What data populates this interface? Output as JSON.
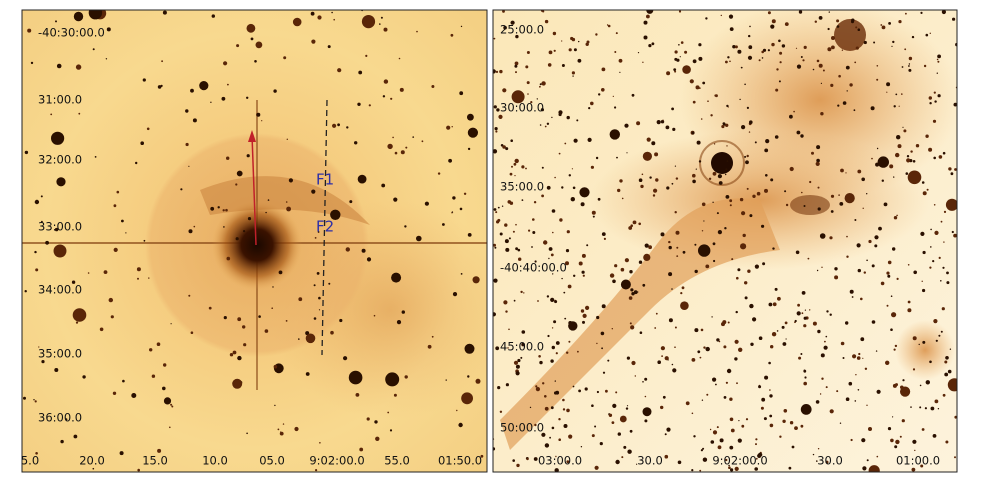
{
  "left": {
    "y_labels": [
      "-40:30:00.0",
      "31:00.0",
      "32:00.0",
      "33:00.0",
      "34:00.0",
      "35:00.0",
      "36:00.0"
    ],
    "x_labels": [
      "5.0",
      "20.0",
      "15.0",
      "10.0",
      "05.0",
      "9:02:00.0",
      "55.0",
      "01:50.0"
    ],
    "annotations": [
      "F1",
      "F2"
    ]
  },
  "right": {
    "y_labels": [
      "25:00.0",
      "30:00.0",
      "35:00.0",
      "-40:40:00.0",
      "45:00.0",
      "50:00.0"
    ],
    "x_labels": [
      "03:00.0",
      "30.0",
      "9:02:00.0",
      "30.0",
      "01:00.0"
    ]
  }
}
